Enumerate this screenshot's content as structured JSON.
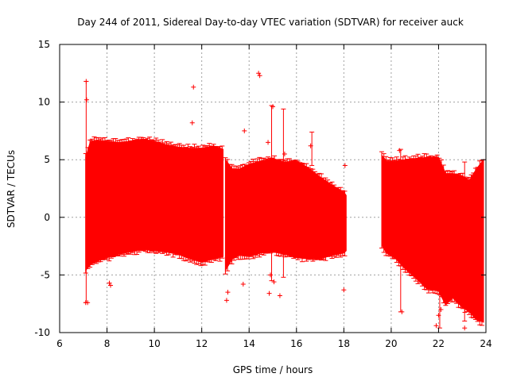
{
  "chart_data": {
    "type": "scatter",
    "title": "Day 244 of 2011, Sidereal Day-to-day VTEC variation (SDTVAR) for receiver auck",
    "xlabel": "GPS time / hours",
    "ylabel": "SDTVAR / TECUs",
    "xlim": [
      6,
      24
    ],
    "ylim": [
      -10,
      15
    ],
    "xticks": [
      6,
      8,
      10,
      12,
      14,
      16,
      18,
      20,
      22,
      24
    ],
    "yticks": [
      -10,
      -5,
      0,
      5,
      10,
      15
    ],
    "xtick_labels": [
      "6",
      "8",
      "10",
      "12",
      "14",
      "16",
      "18",
      "20",
      "22",
      "24"
    ],
    "ytick_labels": [
      "-10",
      "-5",
      "0",
      "5",
      "10",
      "15"
    ],
    "grid": true,
    "marker": "+",
    "colors": {
      "series": "#ff0000",
      "grid": "#a0a0a0",
      "axis": "#000000"
    },
    "series": [
      {
        "name": "SDTVAR",
        "segments": [
          {
            "name": "segment-1",
            "x": [
              7.1,
              7.3,
              7.6,
              8.0,
              8.5,
              9.0,
              9.5,
              10.0,
              10.5,
              11.0,
              11.5,
              12.0,
              12.5,
              12.9
            ],
            "upper": [
              5.2,
              6.6,
              6.7,
              6.6,
              6.5,
              6.6,
              6.8,
              6.6,
              6.3,
              6.1,
              6.0,
              6.0,
              6.2,
              5.9
            ],
            "lower": [
              -4.6,
              -4.1,
              -3.8,
              -3.5,
              -3.2,
              -3.0,
              -2.8,
              -2.9,
              -3.0,
              -3.2,
              -3.6,
              -3.9,
              -3.6,
              -3.4
            ]
          },
          {
            "name": "segment-2",
            "x": [
              13.0,
              13.3,
              13.6,
              14.0,
              14.5,
              15.0,
              15.5,
              16.0,
              16.5,
              17.0,
              17.5,
              18.0,
              18.1
            ],
            "upper": [
              5.0,
              4.2,
              4.2,
              4.6,
              4.9,
              5.1,
              4.8,
              4.9,
              4.3,
              3.5,
              2.8,
              2.2,
              1.9
            ],
            "lower": [
              -4.6,
              -3.6,
              -3.3,
              -3.4,
              -3.1,
              -3.0,
              -3.2,
              -3.5,
              -3.6,
              -3.6,
              -3.3,
              -3.1,
              -2.9
            ]
          },
          {
            "name": "segment-3",
            "x": [
              19.6,
              19.8,
              20.2,
              20.6,
              21.0,
              21.5,
              22.0,
              22.3,
              22.6,
              23.0,
              23.3,
              23.6,
              23.9
            ],
            "upper": [
              5.4,
              4.9,
              4.9,
              5.0,
              5.1,
              5.2,
              5.2,
              3.8,
              3.8,
              3.6,
              3.2,
              4.2,
              5.0
            ],
            "lower": [
              -2.4,
              -3.1,
              -3.6,
              -4.5,
              -5.2,
              -6.2,
              -6.4,
              -7.6,
              -7.0,
              -7.8,
              -8.2,
              -8.9,
              -9.1
            ]
          }
        ],
        "outliers": [
          {
            "x": 7.12,
            "y": 11.8
          },
          {
            "x": 7.14,
            "y": 10.2
          },
          {
            "x": 7.1,
            "y": -7.4
          },
          {
            "x": 7.18,
            "y": -7.4
          },
          {
            "x": 8.1,
            "y": -5.7
          },
          {
            "x": 8.15,
            "y": -5.9
          },
          {
            "x": 11.65,
            "y": 11.3
          },
          {
            "x": 11.6,
            "y": 8.2
          },
          {
            "x": 13.05,
            "y": -7.2
          },
          {
            "x": 13.1,
            "y": -6.5
          },
          {
            "x": 13.8,
            "y": 7.5
          },
          {
            "x": 13.75,
            "y": -5.8
          },
          {
            "x": 14.4,
            "y": 12.5
          },
          {
            "x": 14.45,
            "y": 12.3
          },
          {
            "x": 14.8,
            "y": 6.5
          },
          {
            "x": 14.85,
            "y": -6.6
          },
          {
            "x": 14.9,
            "y": -5.0
          },
          {
            "x": 15.0,
            "y": 9.6
          },
          {
            "x": 15.05,
            "y": -5.6
          },
          {
            "x": 15.3,
            "y": -6.8
          },
          {
            "x": 15.5,
            "y": 5.5
          },
          {
            "x": 16.6,
            "y": 6.2
          },
          {
            "x": 18.05,
            "y": 4.5
          },
          {
            "x": 18.0,
            "y": -6.3
          },
          {
            "x": 20.35,
            "y": 5.8
          },
          {
            "x": 20.45,
            "y": -8.2
          },
          {
            "x": 21.9,
            "y": -9.4
          },
          {
            "x": 22.0,
            "y": -8.5
          },
          {
            "x": 23.1,
            "y": -9.6
          },
          {
            "x": 22.1,
            "y": -8.0
          }
        ],
        "spikes": [
          {
            "x": 7.12,
            "from": -7.4,
            "to": 11.8
          },
          {
            "x": 14.95,
            "from": -5.5,
            "to": 9.7
          },
          {
            "x": 15.45,
            "from": -5.2,
            "to": 9.4
          },
          {
            "x": 16.65,
            "from": 4.5,
            "to": 7.4
          },
          {
            "x": 20.4,
            "from": -8.2,
            "to": 5.9
          },
          {
            "x": 22.05,
            "from": -9.6,
            "to": -6.0
          },
          {
            "x": 23.1,
            "from": -9.0,
            "to": 4.8
          }
        ]
      }
    ]
  }
}
